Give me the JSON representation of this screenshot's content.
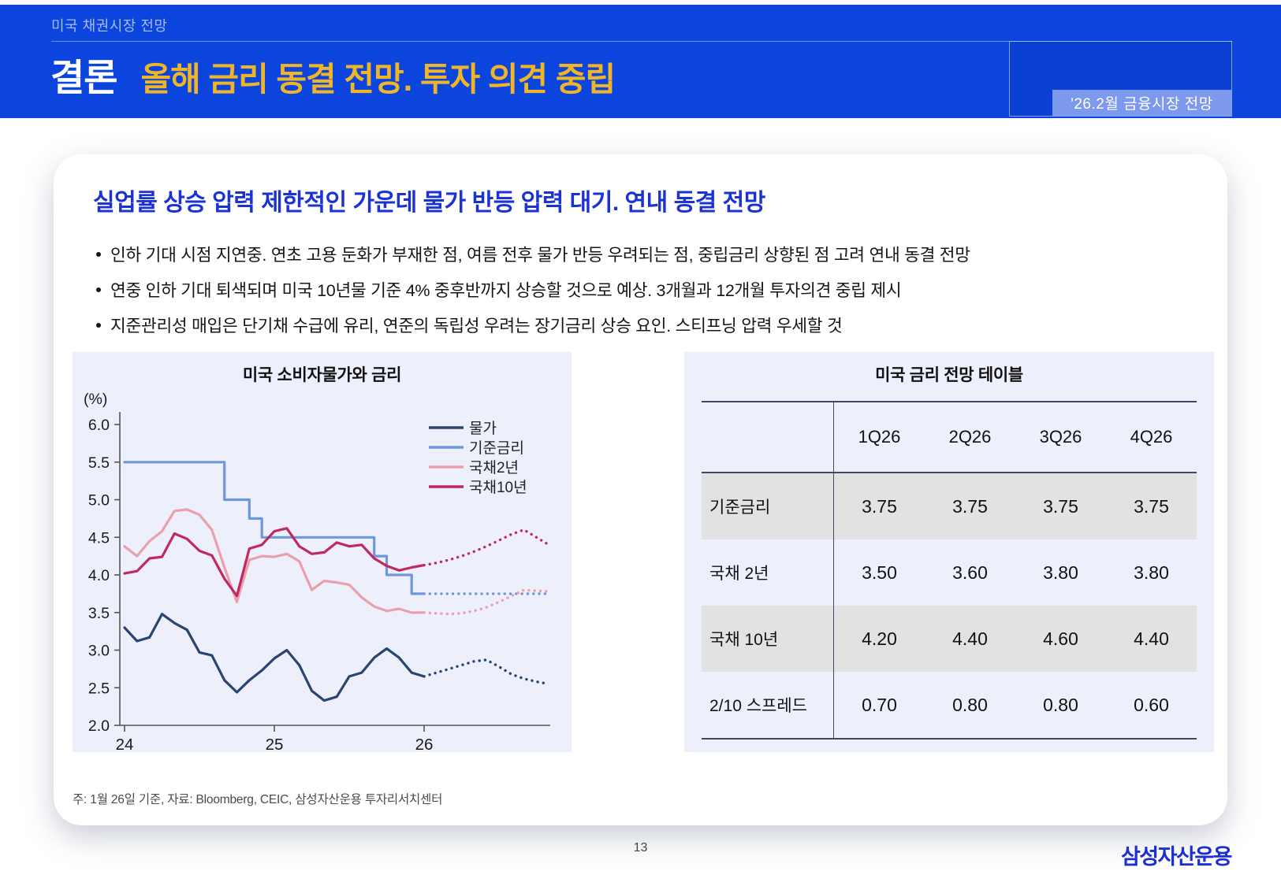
{
  "page": {
    "eyebrow": "미국 채권시장 전망",
    "title_prefix": "결론",
    "title_main": "올해 금리 동결 전망. 투자 의견 중립",
    "corner_tag": "'26.2월 금융시장 전망",
    "page_number": "13",
    "logo": "삼성자산운용"
  },
  "card": {
    "heading": "실업률 상승 압력 제한적인 가운데 물가 반등 압력 대기. 연내 동결 전망",
    "bullets": [
      "인하 기대 시점 지연중. 연초 고용 둔화가 부재한 점, 여름 전후 물가 반등 우려되는 점, 중립금리 상향된 점 고려 연내 동결 전망",
      "연중 인하 기대 퇴색되며 미국 10년물 기준 4% 중후반까지 상승할 것으로 예상. 3개월과 12개월 투자의견 중립 제시",
      "지준관리성 매입은 단기채 수급에 유리, 연준의 독립성 우려는 장기금리 상승 요인. 스티프닝 압력 우세할 것"
    ],
    "note": "주: 1월 26일 기준, 자료: Bloomberg, CEIC, 삼성자산운용 투자리서치센터"
  },
  "chart_data": {
    "type": "line",
    "title": "미국 소비자물가와 금리",
    "unit_label": "(%)",
    "ylim": [
      2.0,
      6.0
    ],
    "ytick_step": 0.5,
    "xticks": [
      24,
      25,
      26
    ],
    "x_start": 24.0,
    "x_step_years": 0.0833,
    "grid": false,
    "legend_position": "top-right",
    "style_note": "solid = actual through Jan 26, dotted = forecast through 4Q26",
    "series": [
      {
        "name": "물가",
        "color": "#2a4470",
        "style": "line",
        "solid": [
          3.3,
          3.12,
          3.17,
          3.48,
          3.36,
          3.27,
          2.97,
          2.93,
          2.6,
          2.44,
          2.6,
          2.73,
          2.89,
          3.0,
          2.8,
          2.46,
          2.33,
          2.38,
          2.65,
          2.7,
          2.9,
          3.02,
          2.9,
          2.7,
          2.65
        ],
        "forecast": [
          2.7,
          2.75,
          2.8,
          2.85,
          2.87,
          2.78,
          2.68,
          2.62,
          2.58,
          2.55
        ]
      },
      {
        "name": "기준금리",
        "color": "#6f97dc",
        "style": "step",
        "solid": [
          5.5,
          5.5,
          5.5,
          5.5,
          5.5,
          5.5,
          5.5,
          5.5,
          5.0,
          5.0,
          4.75,
          4.5,
          4.5,
          4.5,
          4.5,
          4.5,
          4.5,
          4.5,
          4.5,
          4.5,
          4.25,
          4.0,
          4.0,
          3.75,
          3.75
        ],
        "forecast": [
          3.75,
          3.75,
          3.75,
          3.75,
          3.75,
          3.75,
          3.75,
          3.75,
          3.75,
          3.75
        ]
      },
      {
        "name": "국채2년",
        "color": "#e9a0ad",
        "style": "line",
        "solid": [
          4.38,
          4.25,
          4.45,
          4.58,
          4.85,
          4.87,
          4.8,
          4.6,
          4.1,
          3.64,
          4.2,
          4.25,
          4.24,
          4.28,
          4.18,
          3.8,
          3.92,
          3.9,
          3.87,
          3.7,
          3.58,
          3.52,
          3.55,
          3.5,
          3.5
        ],
        "forecast": [
          3.49,
          3.48,
          3.49,
          3.52,
          3.57,
          3.64,
          3.72,
          3.8,
          3.79,
          3.78
        ]
      },
      {
        "name": "국채10년",
        "color": "#c02960",
        "style": "line",
        "solid": [
          4.02,
          4.05,
          4.22,
          4.24,
          4.55,
          4.48,
          4.32,
          4.26,
          3.95,
          3.72,
          4.35,
          4.4,
          4.58,
          4.62,
          4.38,
          4.28,
          4.3,
          4.43,
          4.38,
          4.4,
          4.22,
          4.12,
          4.06,
          4.1,
          4.13
        ],
        "forecast": [
          4.16,
          4.2,
          4.25,
          4.31,
          4.38,
          4.46,
          4.54,
          4.6,
          4.5,
          4.4
        ]
      }
    ]
  },
  "table": {
    "title": "미국 금리 전망 테이블",
    "columns": [
      "1Q26",
      "2Q26",
      "3Q26",
      "4Q26"
    ],
    "rows": [
      {
        "label": "기준금리",
        "values": [
          "3.75",
          "3.75",
          "3.75",
          "3.75"
        ],
        "shaded": true
      },
      {
        "label": "국채 2년",
        "values": [
          "3.50",
          "3.60",
          "3.80",
          "3.80"
        ],
        "shaded": false
      },
      {
        "label": "국채 10년",
        "values": [
          "4.20",
          "4.40",
          "4.60",
          "4.40"
        ],
        "shaded": true
      },
      {
        "label": "2/10 스프레드",
        "values": [
          "0.70",
          "0.80",
          "0.80",
          "0.60"
        ],
        "shaded": false
      }
    ]
  },
  "colors": {
    "band_blue": "#0b45dd",
    "gold": "#f0b429",
    "heading_blue": "#1b33d2",
    "tag_bg": "#7d99ee",
    "panel_bg": "#edf0fa",
    "row_gray": "#e2e2e3",
    "logo_blue": "#1b2fd4"
  }
}
